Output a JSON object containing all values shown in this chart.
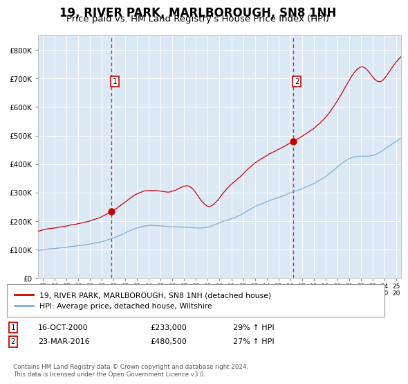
{
  "title": "19, RIVER PARK, MARLBOROUGH, SN8 1NH",
  "subtitle": "Price paid vs. HM Land Registry's House Price Index (HPI)",
  "title_fontsize": 12,
  "subtitle_fontsize": 9.5,
  "bg_color": "#dce9f5",
  "grid_color": "#c8d8e8",
  "red_line_color": "#cc0000",
  "blue_line_color": "#7bafd4",
  "sale1_year": 2000.79,
  "sale1_price": 233000,
  "sale1_label": "16-OCT-2000",
  "sale1_pct": "29%",
  "sale2_year": 2016.22,
  "sale2_price": 480500,
  "sale2_label": "23-MAR-2016",
  "sale2_pct": "27%",
  "legend_red_label": "19, RIVER PARK, MARLBOROUGH, SN8 1NH (detached house)",
  "legend_blue_label": "HPI: Average price, detached house, Wiltshire",
  "footer": "Contains HM Land Registry data © Crown copyright and database right 2024.\nThis data is licensed under the Open Government Licence v3.0.",
  "yticks": [
    0,
    100000,
    200000,
    300000,
    400000,
    500000,
    600000,
    700000,
    800000
  ],
  "ylim": [
    0,
    850000
  ],
  "xlim_start": 1994.6,
  "xlim_end": 2025.4,
  "xticks": [
    1995,
    1996,
    1997,
    1998,
    1999,
    2000,
    2001,
    2002,
    2003,
    2004,
    2005,
    2006,
    2007,
    2008,
    2009,
    2010,
    2011,
    2012,
    2013,
    2014,
    2015,
    2016,
    2017,
    2018,
    2019,
    2020,
    2021,
    2022,
    2023,
    2024,
    2025
  ]
}
